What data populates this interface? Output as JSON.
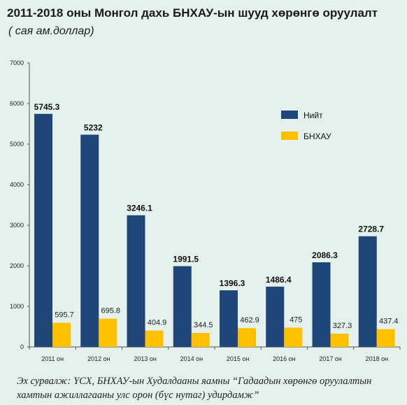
{
  "title": "2011-2018 оны Монгол дахь БНХАУ-ын шууд хөрөнгө оруулалт",
  "subtitle": "( сая ам.доллар)",
  "source": "Эх сурвалж: ҮСХ, БНХАУ-ын Худалдааны яамны “Гадаадын хөрөнгө оруулалтын хамтын ажиллагааны улс орон (бүс нутаг) удирдамж”",
  "colors": {
    "total": "#1f4679",
    "china": "#ffc000",
    "background": "#e4f1ec"
  },
  "chart_data": {
    "type": "bar",
    "categories": [
      "2011 он",
      "2012 он",
      "2013 он",
      "2014 он",
      "2015 он",
      "2016 он",
      "2017 он",
      "2018 он"
    ],
    "series": [
      {
        "name": "Нийт",
        "values": [
          5745.3,
          5232,
          3246.1,
          1991.5,
          1396.3,
          1486.4,
          2086.3,
          2728.7
        ]
      },
      {
        "name": "БНХАУ",
        "values": [
          595.7,
          695.8,
          404.9,
          344.5,
          462.9,
          475,
          327.3,
          437.4
        ]
      }
    ],
    "value_labels": [
      [
        "5745.3",
        "5232",
        "3246.1",
        "1991.5",
        "1396.3",
        "1486.4",
        "2086.3",
        "2728.7"
      ],
      [
        "595.7",
        "695.8",
        "404.9",
        "344.5",
        "462.9",
        "475",
        "327.3",
        "437.4"
      ]
    ],
    "yticks": [
      0,
      1000,
      2000,
      3000,
      4000,
      5000,
      6000,
      7000
    ],
    "ylim": [
      0,
      7000
    ],
    "legend_position": "top-right",
    "grid": false
  }
}
